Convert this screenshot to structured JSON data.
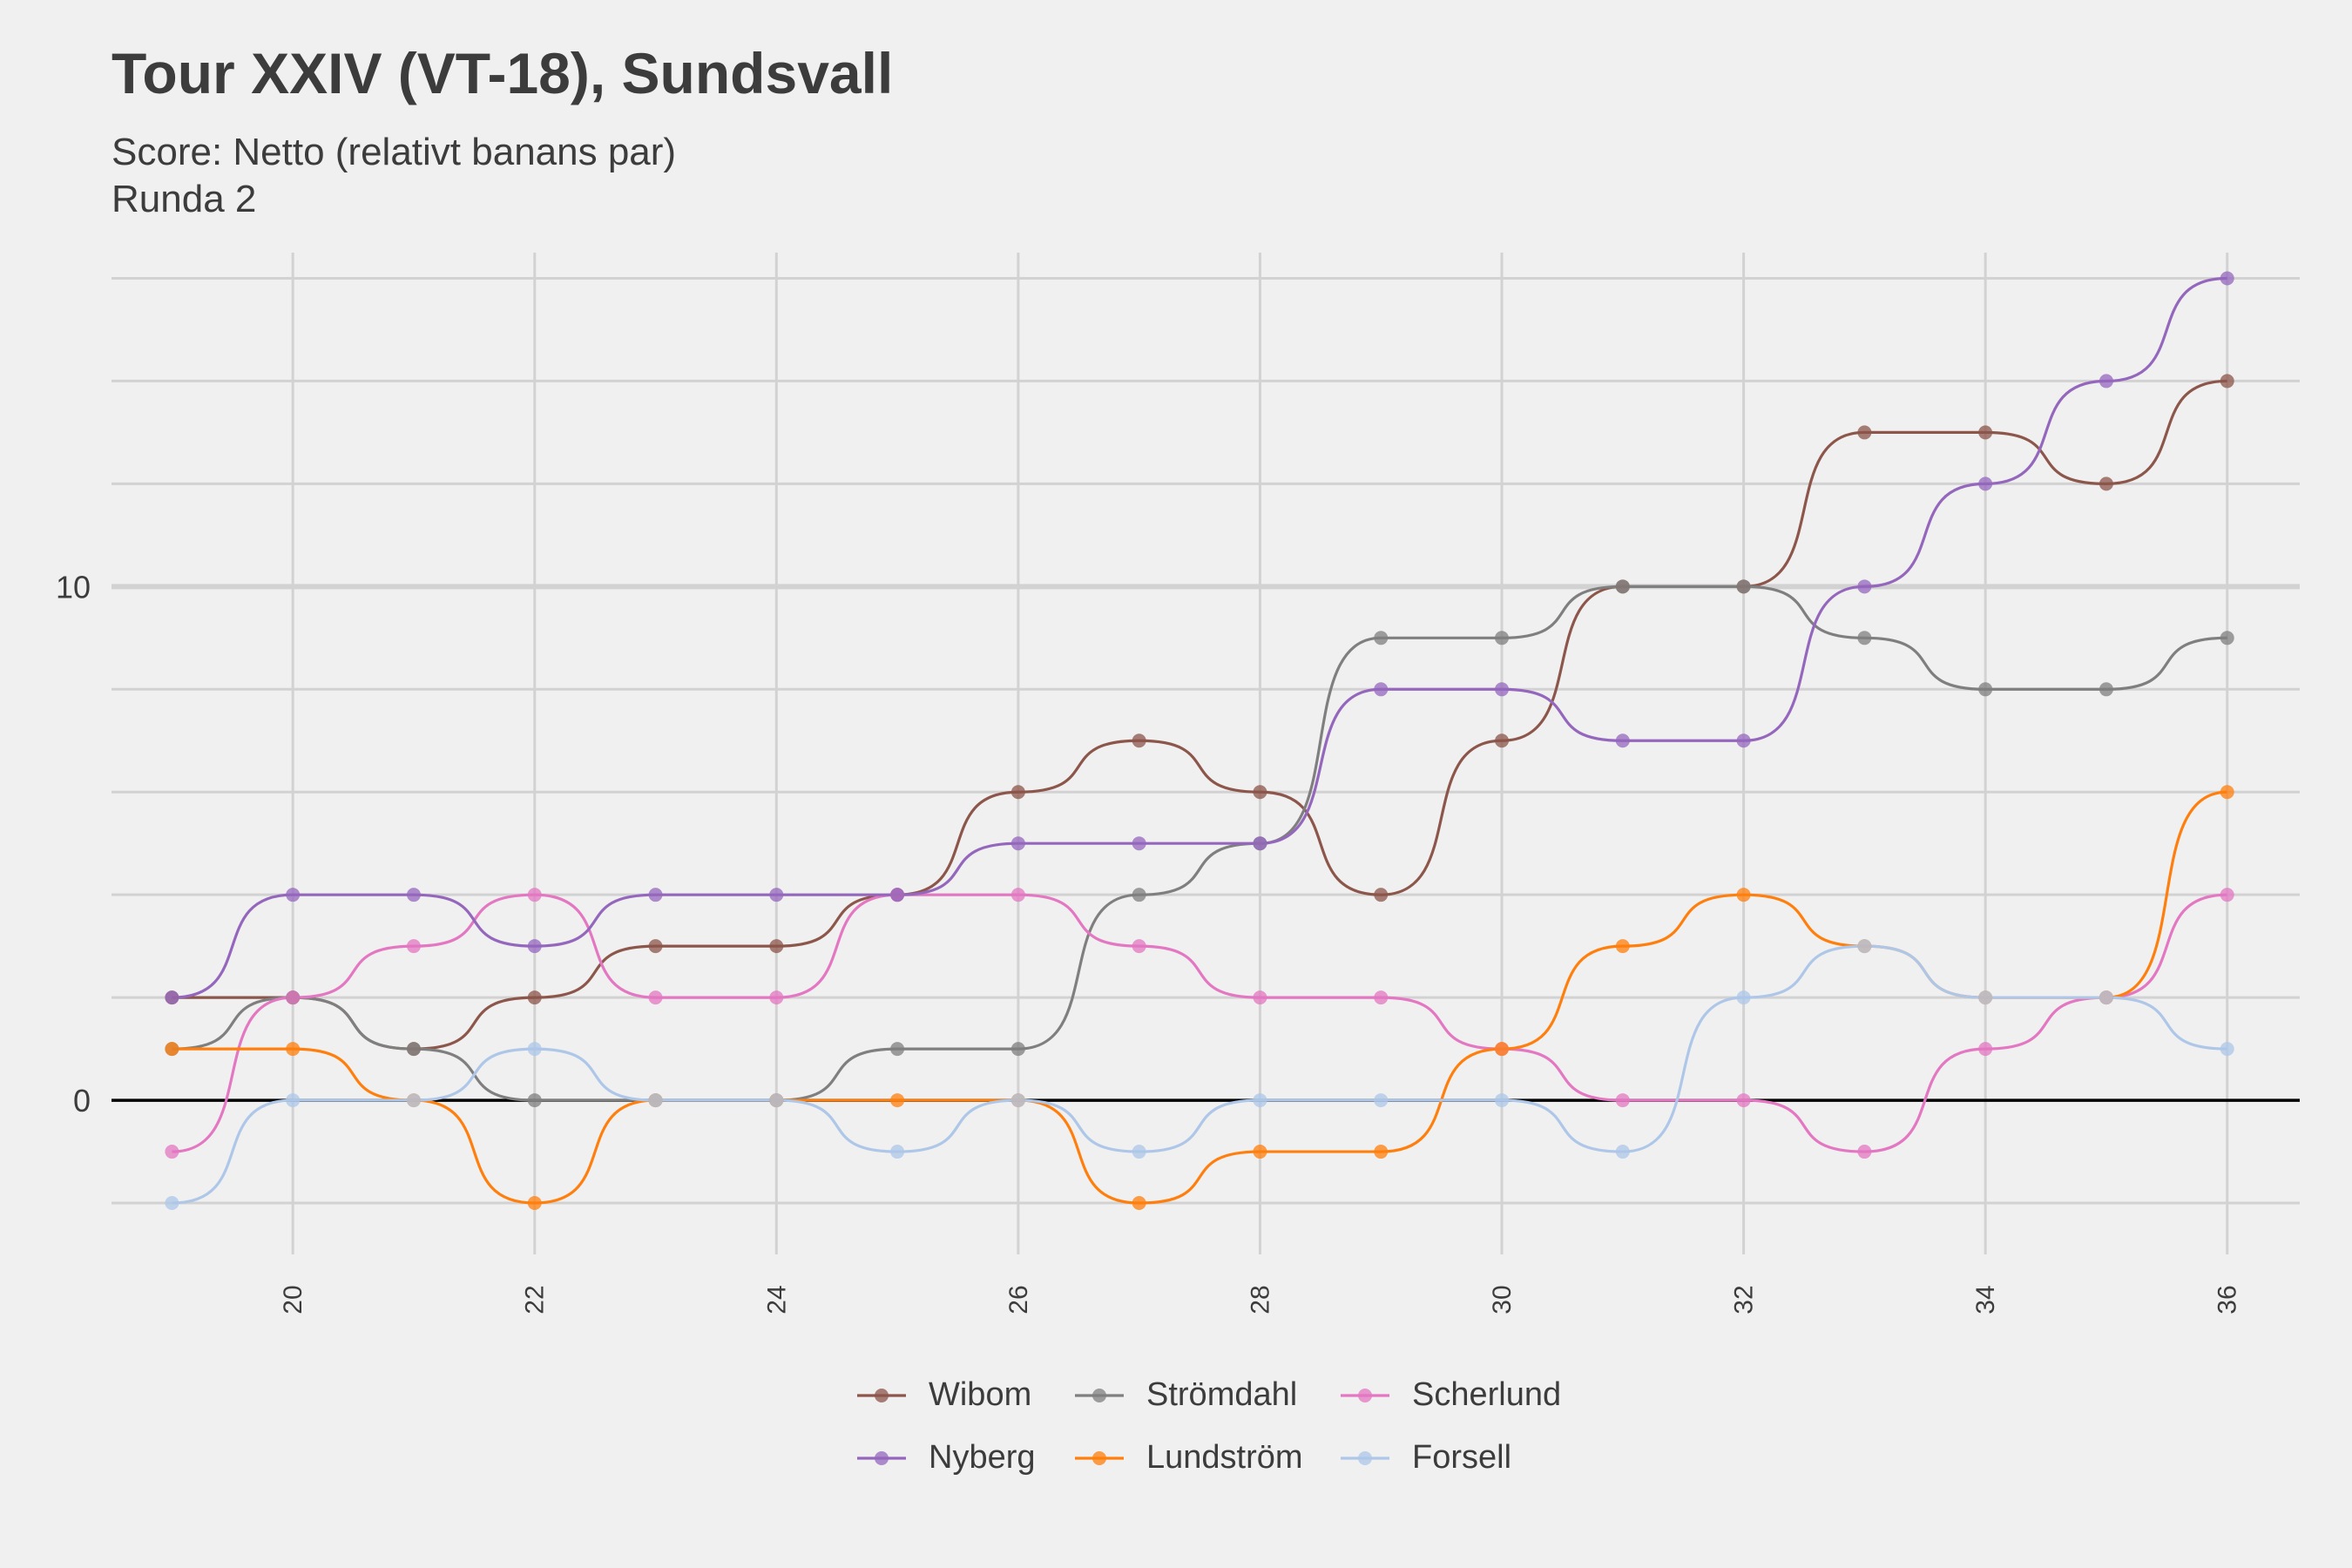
{
  "title": "Tour XXIV (VT-18), Sundsvall",
  "subtitle": "Score: Netto (relativt banans par)",
  "subtitle2": "Runda 2",
  "chart_data": {
    "type": "line",
    "title": "Tour XXIV (VT-18), Sundsvall",
    "subtitle": "Score: Netto (relativt banans par) / Runda 2",
    "xlabel": "",
    "ylabel": "",
    "x": [
      19,
      20,
      21,
      22,
      23,
      24,
      25,
      26,
      27,
      28,
      29,
      30,
      31,
      32,
      33,
      34,
      35,
      36
    ],
    "xlim": [
      18.5,
      36.6
    ],
    "ylim": [
      -3,
      16.5
    ],
    "x_ticks": [
      20,
      22,
      24,
      26,
      28,
      30,
      32,
      34,
      36
    ],
    "y_ticks": [
      0,
      10
    ],
    "grid": true,
    "legend_position": "bottom",
    "series": [
      {
        "name": "Wibom",
        "color": "#8c564b",
        "values": [
          2,
          2,
          1,
          2,
          3,
          3,
          4,
          6,
          7,
          6,
          4,
          7,
          10,
          10,
          13,
          13,
          12,
          14
        ]
      },
      {
        "name": "Strömdahl",
        "color": "#7f7f7f",
        "values": [
          1,
          2,
          1,
          0,
          0,
          0,
          1,
          1,
          4,
          5,
          9,
          9,
          10,
          10,
          9,
          8,
          8,
          9
        ]
      },
      {
        "name": "Scherlund",
        "color": "#e377c2",
        "values": [
          -1,
          2,
          3,
          4,
          2,
          2,
          4,
          4,
          3,
          2,
          2,
          1,
          0,
          0,
          -1,
          1,
          2,
          4
        ]
      },
      {
        "name": "Nyberg",
        "color": "#9467bd",
        "values": [
          2,
          4,
          4,
          3,
          4,
          4,
          4,
          5,
          5,
          5,
          8,
          8,
          7,
          7,
          10,
          12,
          14,
          16
        ]
      },
      {
        "name": "Lundström",
        "color": "#ff7f0e",
        "values": [
          1,
          1,
          0,
          -2,
          0,
          0,
          0,
          0,
          -2,
          -1,
          -1,
          1,
          3,
          4,
          3,
          2,
          2,
          6
        ]
      },
      {
        "name": "Forsell",
        "color": "#aec7e8",
        "values": [
          -2,
          0,
          0,
          1,
          0,
          0,
          -1,
          0,
          -1,
          0,
          0,
          0,
          -1,
          2,
          3,
          2,
          2,
          1
        ]
      }
    ]
  }
}
